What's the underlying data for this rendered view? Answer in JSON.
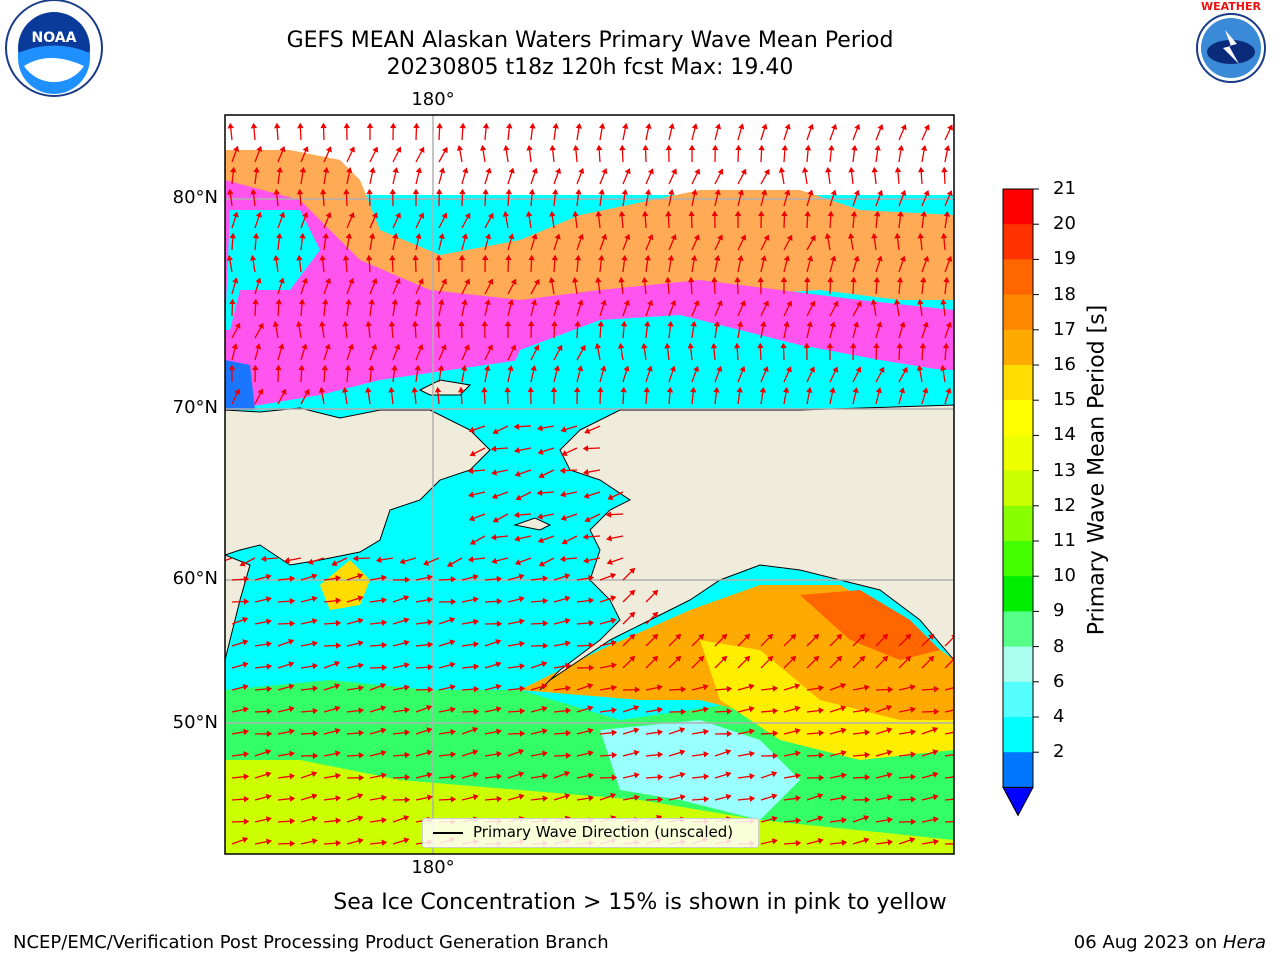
{
  "header": {
    "title_line1": "GEFS MEAN Alaskan Waters Primary Wave Mean Period",
    "title_line2": "20230805 t18z 120h fcst   Max: 19.40"
  },
  "logos": {
    "left": {
      "name": "noaa-logo",
      "text": "NOAA"
    },
    "right": {
      "name": "nws-logo",
      "text": "NATIONAL WEATHER SERVICE"
    }
  },
  "map": {
    "lon_label_top": "180°",
    "lon_label_bottom": "180°",
    "lat_labels": [
      "80°N",
      "70°N",
      "60°N",
      "50°N"
    ],
    "legend_text": "Primary Wave Direction (unscaled)",
    "colors": {
      "land": "#efecdc",
      "ocean_low": "#00ffff",
      "ocean_light": "#99ffff",
      "ocean_green": "#33ff66",
      "ocean_lime": "#ccff00",
      "ocean_yellow": "#ffee00",
      "ocean_orange": "#ff8800",
      "ocean_red": "#ff4400",
      "ice_pink": "#ff55ee",
      "ice_orange": "#ffaa55",
      "deep_blue": "#1a75ff",
      "arrow": "#ee0000"
    }
  },
  "colorbar": {
    "label": "Primary Wave Mean Period [s]",
    "ticks": [
      "21",
      "20",
      "19",
      "18",
      "17",
      "16",
      "15",
      "14",
      "13",
      "12",
      "11",
      "10",
      "9",
      "8",
      "6",
      "4",
      "2"
    ],
    "colors": [
      "#ff0000",
      "#ff3300",
      "#ff6600",
      "#ff8800",
      "#ffaa00",
      "#ffdd00",
      "#ffff00",
      "#eeff00",
      "#ccff00",
      "#88ff00",
      "#44ff00",
      "#00ee00",
      "#55ff88",
      "#aaffee",
      "#55ffff",
      "#00ffff",
      "#0077ff"
    ],
    "under_color": "#0000ff"
  },
  "caption": "Sea Ice Concentration > 15% is shown in pink to yellow",
  "footer": {
    "left": "NCEP/EMC/Verification Post Processing Product Generation Branch",
    "right_date": "06 Aug 2023 on ",
    "right_host": "Hera"
  }
}
